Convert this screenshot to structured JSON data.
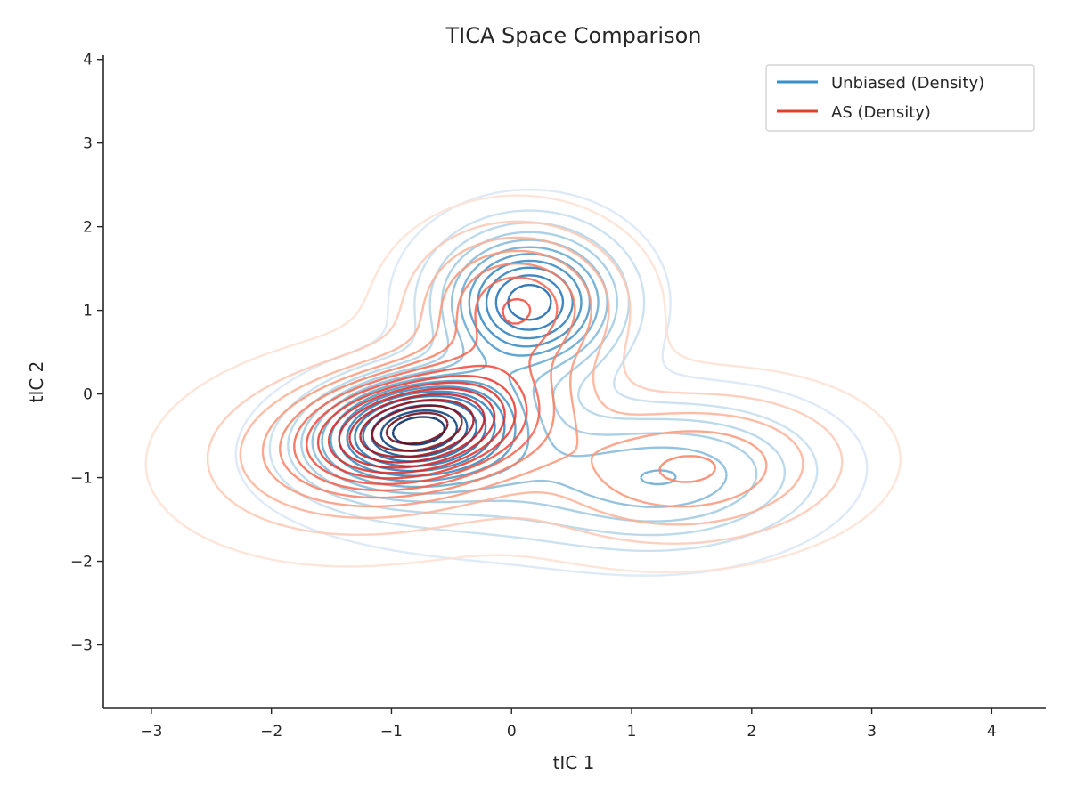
{
  "chart_data": {
    "type": "contour",
    "title": "TICA Space Comparison",
    "xlabel": "tIC 1",
    "ylabel": "tIC 2",
    "xlim": [
      -3.4,
      4.45
    ],
    "ylim": [
      -3.75,
      4.05
    ],
    "xticks": [
      -3,
      -2,
      -1,
      0,
      1,
      2,
      3,
      4
    ],
    "xtick_labels": [
      "−3",
      "−2",
      "−1",
      "0",
      "1",
      "2",
      "3",
      "4"
    ],
    "yticks": [
      -3,
      -2,
      -1,
      0,
      1,
      2,
      3,
      4
    ],
    "ytick_labels": [
      "−3",
      "−2",
      "−1",
      "0",
      "1",
      "2",
      "3",
      "4"
    ],
    "grid": false,
    "legend": {
      "placement": "top-right"
    },
    "series": [
      {
        "name": "Unbiased (Density)",
        "color": "#3a8fc7",
        "colormap": "Blues",
        "levels": 14,
        "modes": [
          {
            "x": -0.8,
            "y": -0.4,
            "sx": 0.55,
            "sy": 0.42,
            "rho": 0.2,
            "w": 0.55
          },
          {
            "x": 0.15,
            "y": 1.1,
            "sx": 0.48,
            "sy": 0.55,
            "rho": 0.0,
            "w": 0.5
          },
          {
            "x": 1.4,
            "y": -1.0,
            "sx": 0.75,
            "sy": 0.55,
            "rho": 0.1,
            "w": 0.22
          },
          {
            "x": -0.3,
            "y": -0.9,
            "sx": 0.9,
            "sy": 0.55,
            "rho": 0.0,
            "w": 0.15
          }
        ]
      },
      {
        "name": "AS (Density)",
        "color": "#e0402f",
        "colormap": "Reds",
        "levels": 14,
        "modes": [
          {
            "x": -0.75,
            "y": -0.38,
            "sx": 0.62,
            "sy": 0.45,
            "rho": 0.25,
            "w": 0.6
          },
          {
            "x": 0.05,
            "y": 1.05,
            "sx": 0.55,
            "sy": 0.6,
            "rho": 0.0,
            "w": 0.35
          },
          {
            "x": 1.5,
            "y": -0.9,
            "sx": 0.85,
            "sy": 0.6,
            "rho": 0.1,
            "w": 0.25
          },
          {
            "x": -1.2,
            "y": -0.7,
            "sx": 0.95,
            "sy": 0.7,
            "rho": 0.1,
            "w": 0.2
          }
        ]
      }
    ]
  }
}
